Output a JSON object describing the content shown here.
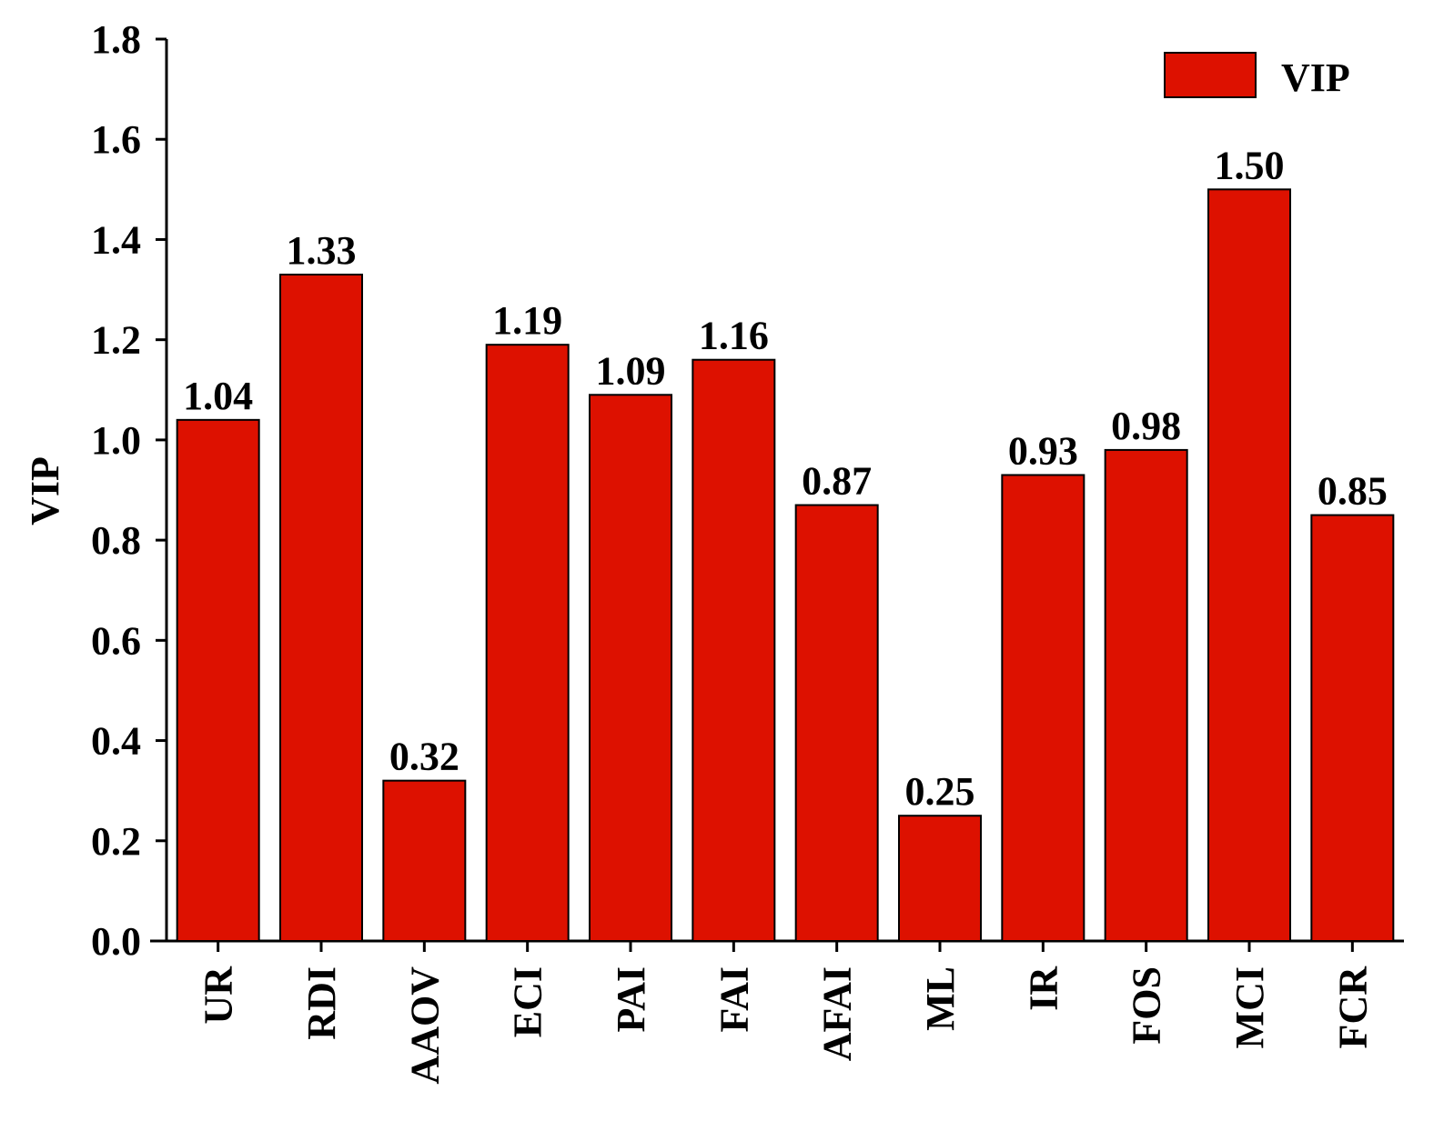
{
  "chart_data": {
    "type": "bar",
    "y_label": "VIP",
    "categories": [
      "UR",
      "RDI",
      "AAOV",
      "ECI",
      "PAI",
      "FAI",
      "AFAI",
      "ML",
      "IR",
      "FOS",
      "MCI",
      "FCR"
    ],
    "series": [
      {
        "name": "VIP",
        "color": "#dd1100",
        "values": [
          1.04,
          1.33,
          0.32,
          1.19,
          1.09,
          1.16,
          0.87,
          0.25,
          0.93,
          0.98,
          1.5,
          0.85
        ],
        "value_labels": [
          "1.04",
          "1.33",
          "0.32",
          "1.19",
          "1.09",
          "1.16",
          "0.87",
          "0.25",
          "0.93",
          "0.98",
          "1.50",
          "0.85"
        ]
      }
    ],
    "ylim": [
      0,
      1.8
    ],
    "yticks": [
      {
        "value": 0,
        "label": "0.0"
      },
      0.2,
      0.4,
      0.6,
      0.8,
      {
        "value": 1,
        "label": "1.0"
      },
      1.2,
      1.4,
      1.6,
      1.8
    ],
    "legend": "upper right"
  }
}
